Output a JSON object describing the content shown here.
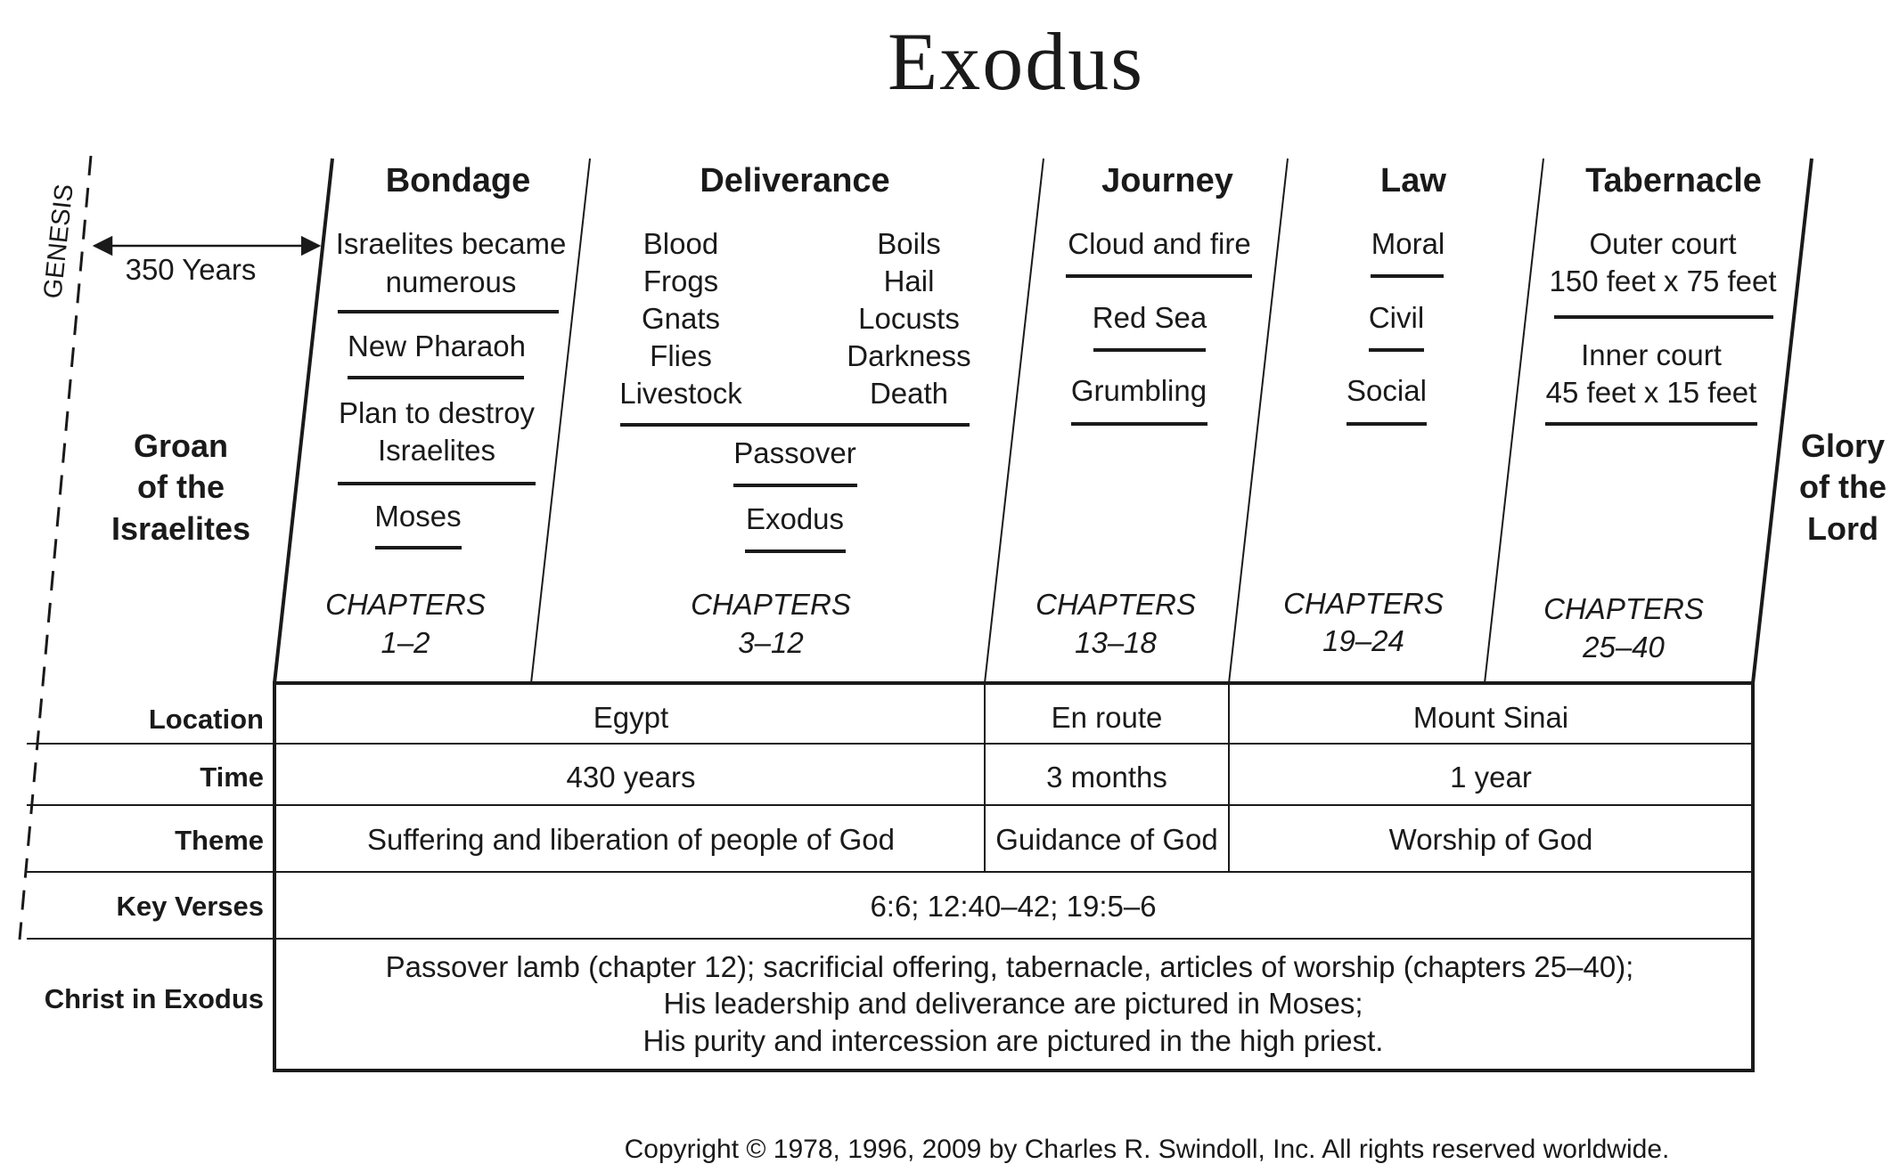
{
  "title": "Exodus",
  "genesis_label": "GENESIS",
  "years_label": "350 Years",
  "left_theme": [
    "Groan",
    "of the",
    "Israelites"
  ],
  "right_theme": [
    "Glory",
    "of the",
    "Lord"
  ],
  "sections": {
    "bondage": {
      "heading": "Bondage",
      "items": [
        "Israelites became",
        "numerous",
        "New Pharaoh",
        "Plan to destroy",
        "Israelites",
        "Moses"
      ],
      "chapters_label": "CHAPTERS",
      "chapters_range": "1–2"
    },
    "deliverance": {
      "heading": "Deliverance",
      "plagues_left": [
        "Blood",
        "Frogs",
        "Gnats",
        "Flies",
        "Livestock"
      ],
      "plagues_right": [
        "Boils",
        "Hail",
        "Locusts",
        "Darkness",
        "Death"
      ],
      "items": [
        "Passover",
        "Exodus"
      ],
      "chapters_label": "CHAPTERS",
      "chapters_range": "3–12"
    },
    "journey": {
      "heading": "Journey",
      "items": [
        "Cloud and fire",
        "Red Sea",
        "Grumbling"
      ],
      "chapters_label": "CHAPTERS",
      "chapters_range": "13–18"
    },
    "law": {
      "heading": "Law",
      "items": [
        "Moral",
        "Civil",
        "Social"
      ],
      "chapters_label": "CHAPTERS",
      "chapters_range": "19–24"
    },
    "tabernacle": {
      "heading": "Tabernacle",
      "items": [
        "Outer court",
        "150 feet x 75 feet",
        "Inner court",
        "45 feet x 15 feet"
      ],
      "chapters_label": "CHAPTERS",
      "chapters_range": "25–40"
    }
  },
  "table": {
    "labels": [
      "Location",
      "Time",
      "Theme",
      "Key Verses",
      "Christ in Exodus"
    ],
    "location": [
      "Egypt",
      "En route",
      "Mount Sinai"
    ],
    "time": [
      "430 years",
      "3 months",
      "1 year"
    ],
    "theme": [
      "Suffering and liberation of people of God",
      "Guidance of God",
      "Worship of God"
    ],
    "key_verses": "6:6; 12:40–42; 19:5–6",
    "christ": [
      "Passover lamb (chapter 12); sacrificial offering, tabernacle, articles of worship (chapters 25–40);",
      "His leadership and deliverance are pictured in Moses;",
      "His purity and intercession are pictured in the high priest."
    ]
  },
  "copyright": "Copyright © 1978, 1996, 2009 by Charles R. Swindoll, Inc. All rights reserved worldwide."
}
